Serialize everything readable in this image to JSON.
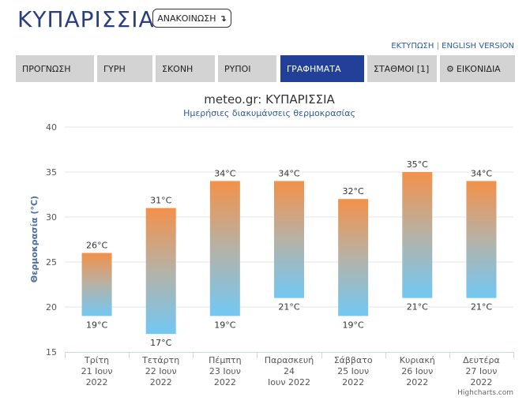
{
  "header": {
    "title": "ΚΥΠΑΡΙΣΣΙΑ",
    "announce_label": "ΑΝΑΚΟΙΝΩΣΗ",
    "announce_icon": "arrow-down-turn-icon",
    "links": {
      "print": "ΕΚΤΥΠΩΣΗ",
      "separator": "|",
      "english": "ENGLISH VERSION"
    }
  },
  "tabs": [
    {
      "label": "ΠΡΟΓΝΩΣΗ",
      "active": false
    },
    {
      "label": "ΓΥΡΗ",
      "active": false
    },
    {
      "label": "ΣΚΟΝΗ",
      "active": false
    },
    {
      "label": "ΡΥΠΟΙ",
      "active": false
    },
    {
      "label": "ΓΡΑΦΗΜΑΤΑ",
      "active": true
    },
    {
      "label": "ΣΤΑΘΜΟΙ [1]",
      "active": false
    },
    {
      "label": "ΕΙΚΟΝΙΔΙΑ",
      "active": false,
      "icon": "gear-icon"
    }
  ],
  "colors": {
    "brand": "#2c3f7a",
    "active_tab": "#22409a",
    "tab": "#d3d3d3",
    "bar_top": "#f39149",
    "bar_bottom": "#72c8f4"
  },
  "chart_data": {
    "type": "bar",
    "subtype": "range",
    "title": "meteo.gr: ΚΥΠΑΡΙΣΣΙΑ",
    "subtitle": "Ημερήσιες διακυμάνσεις θερμοκρασίας",
    "ylabel": "Θερμοκρασία (°C)",
    "xlabel": "",
    "ylim": [
      15,
      40
    ],
    "yticks": [
      15,
      20,
      25,
      30,
      35,
      40
    ],
    "grid": true,
    "categories": [
      [
        "Τρίτη",
        "21 Ιουν",
        "2022"
      ],
      [
        "Τετάρτη",
        "22 Ιουν",
        "2022"
      ],
      [
        "Πέμπτη",
        "23 Ιουν",
        "2022"
      ],
      [
        "Παρασκευή",
        "24",
        "Ιουν 2022"
      ],
      [
        "Σάββατο",
        "25 Ιουν",
        "2022"
      ],
      [
        "Κυριακή",
        "26 Ιουν",
        "2022"
      ],
      [
        "Δευτέρα",
        "27 Ιουν",
        "2022"
      ]
    ],
    "low": [
      19,
      17,
      19,
      21,
      19,
      21,
      21
    ],
    "high": [
      26,
      31,
      34,
      34,
      32,
      35,
      34
    ],
    "unit": "°C",
    "credits": "Highcharts.com"
  }
}
